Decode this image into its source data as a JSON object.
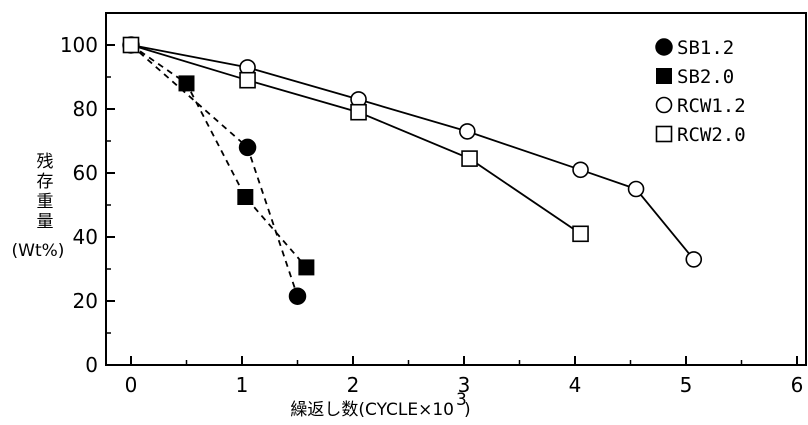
{
  "chart_data": {
    "type": "line",
    "title": "",
    "xlabel": "繰返し数(CYCLE×10",
    "xlabel_sup": "3",
    "xlabel_close": ")",
    "ylabel_chars": [
      "残",
      "存",
      "重",
      "量"
    ],
    "ylabel_unit": "(Wt%)",
    "xlim": [
      0,
      6
    ],
    "ylim": [
      0,
      110
    ],
    "x_ticks": [
      0,
      1,
      2,
      3,
      4,
      5,
      6
    ],
    "y_ticks": [
      0,
      20,
      40,
      60,
      80,
      100
    ],
    "grid": false,
    "legend_position": "top-right",
    "series": [
      {
        "name": "SB1.2",
        "marker": "filled-circle",
        "line": "dashed",
        "color": "#000000",
        "points": [
          [
            0,
            100
          ],
          [
            1.05,
            68
          ],
          [
            1.5,
            21.5
          ]
        ]
      },
      {
        "name": "SB2.0",
        "marker": "filled-square",
        "line": "dashed",
        "color": "#000000",
        "points": [
          [
            0,
            100
          ],
          [
            0.5,
            88
          ],
          [
            1.03,
            52.5
          ],
          [
            1.58,
            30.5
          ]
        ]
      },
      {
        "name": "RCW1.2",
        "marker": "open-circle",
        "line": "solid",
        "color": "#000000",
        "points": [
          [
            0,
            100
          ],
          [
            1.05,
            93
          ],
          [
            2.05,
            83
          ],
          [
            3.03,
            73
          ],
          [
            4.05,
            61
          ],
          [
            4.55,
            55
          ],
          [
            5.07,
            33
          ]
        ]
      },
      {
        "name": "RCW2.0",
        "marker": "open-square",
        "line": "solid",
        "color": "#000000",
        "points": [
          [
            0,
            100
          ],
          [
            1.05,
            89
          ],
          [
            2.05,
            79
          ],
          [
            3.05,
            64.5
          ],
          [
            4.05,
            41
          ]
        ]
      }
    ]
  }
}
